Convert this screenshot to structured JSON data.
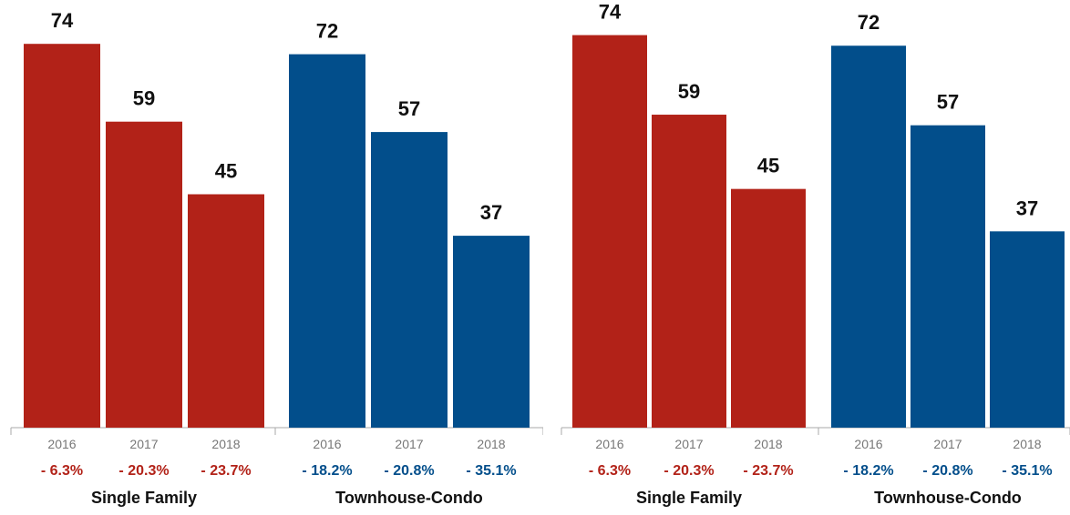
{
  "chart_data": [
    {
      "type": "bar",
      "colors": {
        "single_family": "#b22218",
        "townhouse_condo": "#024e8b",
        "axis": "#aaaaaa"
      },
      "ylim": [
        0,
        80
      ],
      "groups": [
        {
          "name": "Single Family",
          "color_key": "single_family",
          "categories": [
            "2016",
            "2017",
            "2018"
          ],
          "values": [
            74,
            59,
            45
          ],
          "changes": [
            "- 6.3%",
            "- 20.3%",
            "- 23.7%"
          ]
        },
        {
          "name": "Townhouse-Condo",
          "color_key": "townhouse_condo",
          "categories": [
            "2016",
            "2017",
            "2018"
          ],
          "values": [
            72,
            57,
            37
          ],
          "changes": [
            "- 18.2%",
            "- 20.8%",
            "- 35.1%"
          ]
        }
      ]
    },
    {
      "type": "bar",
      "colors": {
        "single_family": "#b22218",
        "townhouse_condo": "#024e8b",
        "axis": "#aaaaaa"
      },
      "ylim": [
        0,
        80
      ],
      "groups": [
        {
          "name": "Single Family",
          "color_key": "single_family",
          "categories": [
            "2016",
            "2017",
            "2018"
          ],
          "values": [
            74,
            59,
            45
          ],
          "changes": [
            "- 6.3%",
            "- 20.3%",
            "- 23.7%"
          ]
        },
        {
          "name": "Townhouse-Condo",
          "color_key": "townhouse_condo",
          "categories": [
            "2016",
            "2017",
            "2018"
          ],
          "values": [
            72,
            57,
            37
          ],
          "changes": [
            "- 18.2%",
            "- 20.8%",
            "- 35.1%"
          ]
        }
      ]
    }
  ]
}
